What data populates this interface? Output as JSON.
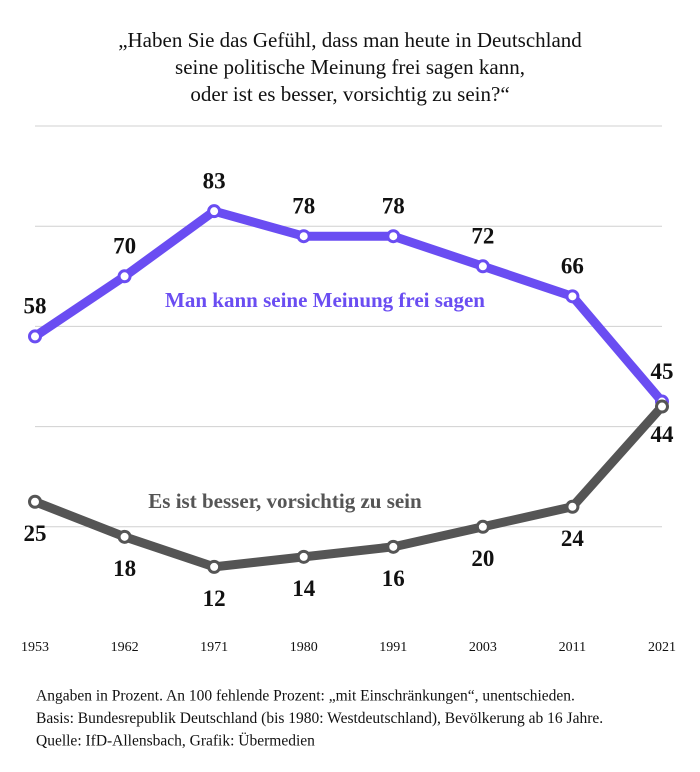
{
  "chart_data": {
    "type": "line",
    "title": [
      "„Haben Sie das Gefühl, dass man heute in Deutschland",
      "seine politische Meinung frei sagen kann,",
      "oder ist es besser, vorsichtig zu sein?“"
    ],
    "categories": [
      "1953",
      "1962",
      "1971",
      "1980",
      "1991",
      "2003",
      "2011",
      "2021"
    ],
    "series": [
      {
        "name": "Man kann seine Meinung frei sagen",
        "color": "#6a4df2",
        "values": [
          58,
          70,
          83,
          78,
          78,
          72,
          66,
          45
        ]
      },
      {
        "name": "Es ist besser, vorsichtig zu sein",
        "color": "#555555",
        "values": [
          25,
          18,
          12,
          14,
          16,
          20,
          24,
          44
        ]
      }
    ],
    "ylim": [
      0,
      100
    ],
    "yticks": [
      20,
      40,
      60,
      80,
      100
    ],
    "grid": true,
    "notes": [
      "Angaben in Prozent. An 100 fehlende Prozent: „mit Einschränkungen“, unentschieden.",
      "Basis: Bundesrepublik Deutschland (bis 1980: Westdeutschland), Bevölkerung ab 16 Jahre.",
      "Quelle: IfD-Allensbach, Grafik: Übermedien"
    ]
  }
}
